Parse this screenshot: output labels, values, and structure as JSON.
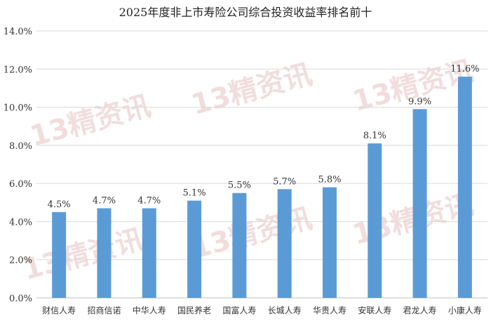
{
  "title": "2025年度非上市寿险公司综合投资收益率排名前十",
  "watermark_text": "13精资讯",
  "colors": {
    "bar": "#5b9bd5",
    "grid": "#d9d9d9",
    "axis": "#bfbfbf",
    "text": "#333333"
  },
  "chart_data": {
    "type": "bar",
    "title": "2025年度非上市寿险公司综合投资收益率排名前十",
    "categories": [
      "财信人寿",
      "招商信诺",
      "中华人寿",
      "国民养老",
      "国富人寿",
      "长城人寿",
      "华贵人寿",
      "安联人寿",
      "君龙人寿",
      "小康人寿"
    ],
    "values": [
      4.5,
      4.7,
      4.7,
      5.1,
      5.5,
      5.7,
      5.8,
      8.1,
      9.9,
      11.6
    ],
    "data_labels": [
      "4.5%",
      "4.7%",
      "4.7%",
      "5.1%",
      "5.5%",
      "5.7%",
      "5.8%",
      "8.1%",
      "9.9%",
      "11.6%"
    ],
    "y_ticks": [
      "0.0%",
      "2.0%",
      "4.0%",
      "6.0%",
      "8.0%",
      "10.0%",
      "12.0%",
      "14.0%"
    ],
    "ylim": [
      0,
      14
    ],
    "y_unit": "%",
    "grid": true,
    "legend": "none",
    "xlabel": "",
    "ylabel": ""
  }
}
